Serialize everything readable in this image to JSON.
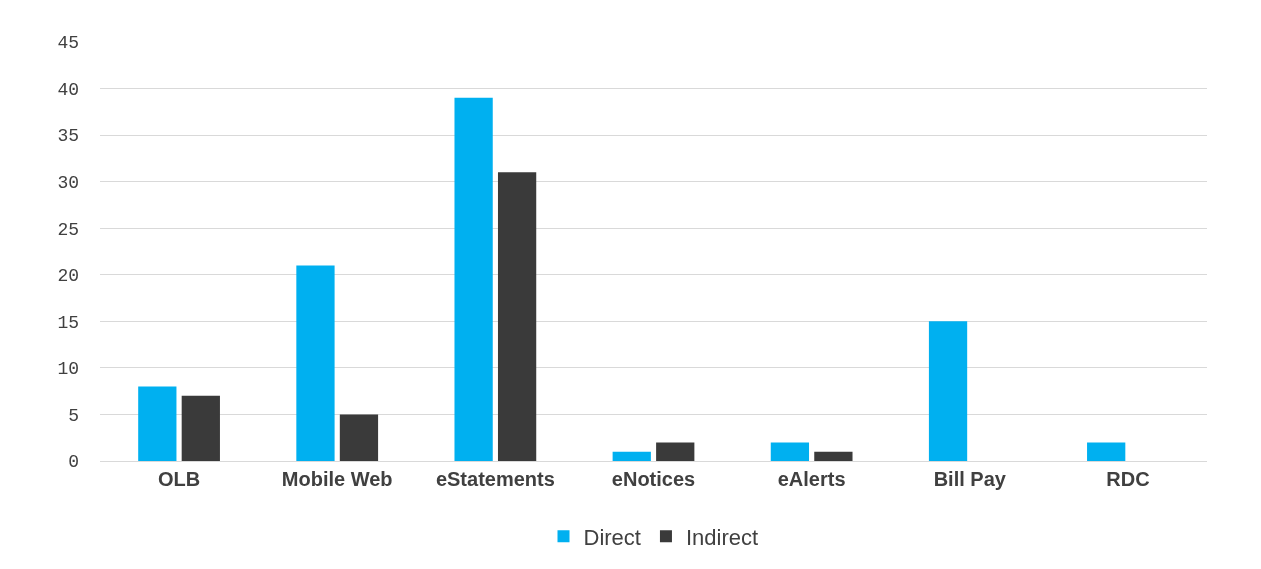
{
  "chart_data": {
    "type": "bar",
    "categories": [
      "OLB",
      "Mobile Web",
      "eStatements",
      "eNotices",
      "eAlerts",
      "Bill Pay",
      "RDC"
    ],
    "series": [
      {
        "name": "Direct",
        "color": "#00b0f0",
        "values": [
          8,
          21,
          39,
          1,
          2,
          15,
          2
        ]
      },
      {
        "name": "Indirect",
        "color": "#3a3a3a",
        "values": [
          7,
          5,
          31,
          2,
          1,
          0,
          0
        ]
      }
    ],
    "ylim": [
      0,
      45
    ],
    "yticks": [
      0,
      5,
      10,
      15,
      20,
      25,
      30,
      35,
      40,
      45
    ],
    "grid": "y",
    "legend": "bottom"
  }
}
